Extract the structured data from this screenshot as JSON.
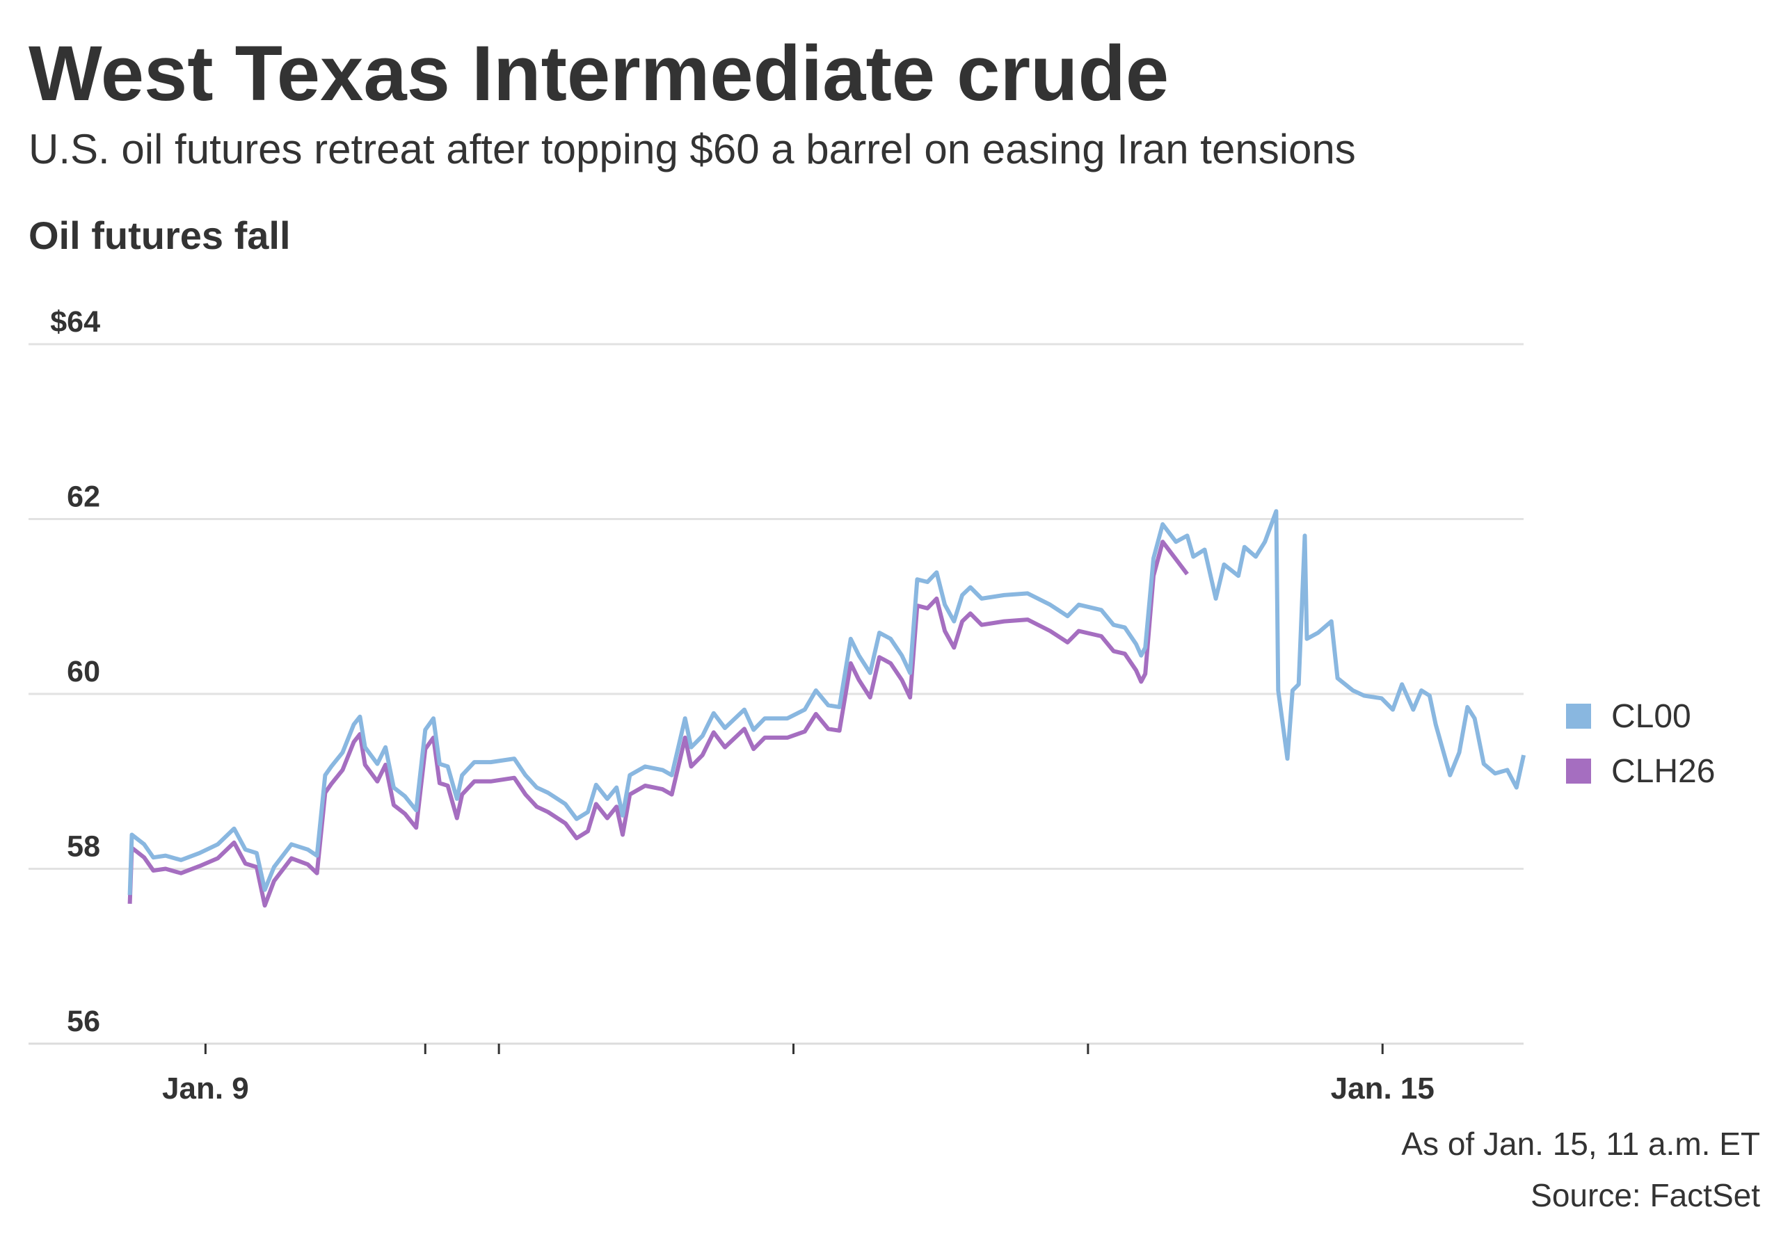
{
  "title": "West Texas Intermediate crude",
  "subtitle": "U.S. oil futures retreat after topping $60 a barrel on easing Iran tensions",
  "chart_data": {
    "type": "line",
    "title": "Oil futures fall",
    "xlabel": "",
    "ylabel": "",
    "ylim": [
      56,
      64
    ],
    "yticks": [
      "$64",
      "62",
      "60",
      "58",
      "56"
    ],
    "ytick_values": [
      64,
      62,
      60,
      58,
      56
    ],
    "xtick_labels": [
      {
        "label": "Jan. 9",
        "at": "Jan 9 00:00"
      },
      {
        "label": "",
        "at": "Jan 11 18:00"
      },
      {
        "label": "",
        "at": "Jan 12 00:00"
      },
      {
        "label": "",
        "at": "Jan 13 00:00"
      },
      {
        "label": "",
        "at": "Jan 14 00:00"
      },
      {
        "label": "Jan. 15",
        "at": "Jan 15 00:00"
      }
    ],
    "grid": true,
    "legend": "right",
    "series": [
      {
        "name": "CL00",
        "color": "#89b7e0",
        "points": [
          [
            "Jan 8 17:50",
            57.7
          ],
          [
            "Jan 8 18:00",
            58.39
          ],
          [
            "Jan 8 19:00",
            58.28
          ],
          [
            "Jan 8 19:45",
            58.13
          ],
          [
            "Jan 8 20:45",
            58.15
          ],
          [
            "Jan 8 22:00",
            58.1
          ],
          [
            "Jan 8 23:30",
            58.18
          ],
          [
            "Jan 9 01:00",
            58.28
          ],
          [
            "Jan 9 02:20",
            58.46
          ],
          [
            "Jan 9 03:15",
            58.22
          ],
          [
            "Jan 9 04:10",
            58.18
          ],
          [
            "Jan 9 04:50",
            57.76
          ],
          [
            "Jan 9 05:35",
            58.02
          ],
          [
            "Jan 9 07:00",
            58.28
          ],
          [
            "Jan 9 08:20",
            58.22
          ],
          [
            "Jan 9 09:05",
            58.15
          ],
          [
            "Jan 9 09:45",
            59.07
          ],
          [
            "Jan 9 10:15",
            59.17
          ],
          [
            "Jan 9 11:10",
            59.33
          ],
          [
            "Jan 9 12:05",
            59.65
          ],
          [
            "Jan 9 12:35",
            59.74
          ],
          [
            "Jan 9 13:00",
            59.39
          ],
          [
            "Jan 9 14:00",
            59.2
          ],
          [
            "Jan 9 14:40",
            59.39
          ],
          [
            "Jan 9 15:20",
            58.93
          ],
          [
            "Jan 9 16:15",
            58.83
          ],
          [
            "Jan 9 17:10",
            58.67
          ],
          [
            "Jan 11 18:00",
            59.59
          ],
          [
            "Jan 11 18:40",
            59.72
          ],
          [
            "Jan 11 19:10",
            59.2
          ],
          [
            "Jan 11 19:50",
            59.17
          ],
          [
            "Jan 11 20:35",
            58.8
          ],
          [
            "Jan 11 21:00",
            59.07
          ],
          [
            "Jan 11 22:00",
            59.22
          ],
          [
            "Jan 11 23:20",
            59.22
          ],
          [
            "Jan 12 01:15",
            59.26
          ],
          [
            "Jan 12 02:10",
            59.07
          ],
          [
            "Jan 12 03:05",
            58.93
          ],
          [
            "Jan 12 04:00",
            58.87
          ],
          [
            "Jan 12 05:25",
            58.74
          ],
          [
            "Jan 12 06:20",
            58.57
          ],
          [
            "Jan 12 07:15",
            58.65
          ],
          [
            "Jan 12 07:55",
            58.96
          ],
          [
            "Jan 12 08:50",
            58.8
          ],
          [
            "Jan 12 09:35",
            58.93
          ],
          [
            "Jan 12 10:05",
            58.61
          ],
          [
            "Jan 12 10:40",
            59.07
          ],
          [
            "Jan 12 11:55",
            59.17
          ],
          [
            "Jan 12 13:20",
            59.13
          ],
          [
            "Jan 12 14:05",
            59.07
          ],
          [
            "Jan 12 15:10",
            59.72
          ],
          [
            "Jan 12 15:40",
            59.39
          ],
          [
            "Jan 12 16:35",
            59.52
          ],
          [
            "Jan 12 17:30",
            59.78
          ],
          [
            "Jan 12 18:25",
            59.61
          ],
          [
            "Jan 12 20:00",
            59.82
          ],
          [
            "Jan 12 20:45",
            59.59
          ],
          [
            "Jan 12 21:40",
            59.72
          ],
          [
            "Jan 12 23:30",
            59.72
          ],
          [
            "Jan 13 00:55",
            59.82
          ],
          [
            "Jan 13 01:50",
            60.04
          ],
          [
            "Jan 13 02:50",
            59.87
          ],
          [
            "Jan 13 03:45",
            59.85
          ],
          [
            "Jan 13 04:40",
            60.63
          ],
          [
            "Jan 13 05:20",
            60.44
          ],
          [
            "Jan 13 06:15",
            60.24
          ],
          [
            "Jan 13 07:00",
            60.7
          ],
          [
            "Jan 13 07:55",
            60.63
          ],
          [
            "Jan 13 08:50",
            60.44
          ],
          [
            "Jan 13 09:30",
            60.24
          ],
          [
            "Jan 13 10:05",
            61.31
          ],
          [
            "Jan 13 10:55",
            61.28
          ],
          [
            "Jan 13 11:40",
            61.39
          ],
          [
            "Jan 13 12:20",
            61.02
          ],
          [
            "Jan 13 13:05",
            60.83
          ],
          [
            "Jan 13 13:45",
            61.13
          ],
          [
            "Jan 13 14:25",
            61.22
          ],
          [
            "Jan 13 15:20",
            61.09
          ],
          [
            "Jan 13 17:10",
            61.13
          ],
          [
            "Jan 13 19:05",
            61.15
          ],
          [
            "Jan 13 20:55",
            61.02
          ],
          [
            "Jan 13 22:20",
            60.89
          ],
          [
            "Jan 13 23:15",
            61.02
          ],
          [
            "Jan 14 01:05",
            60.96
          ],
          [
            "Jan 14 02:05",
            60.79
          ],
          [
            "Jan 14 03:00",
            60.76
          ],
          [
            "Jan 14 03:55",
            60.57
          ],
          [
            "Jan 14 04:20",
            60.44
          ],
          [
            "Jan 14 04:40",
            60.53
          ],
          [
            "Jan 14 05:20",
            61.55
          ],
          [
            "Jan 14 06:05",
            61.94
          ],
          [
            "Jan 14 07:10",
            61.74
          ],
          [
            "Jan 14 08:05",
            61.81
          ],
          [
            "Jan 14 08:35",
            61.57
          ],
          [
            "Jan 14 09:30",
            61.65
          ],
          [
            "Jan 14 10:25",
            61.09
          ],
          [
            "Jan 14 11:05",
            61.48
          ],
          [
            "Jan 14 12:15",
            61.35
          ],
          [
            "Jan 14 12:45",
            61.68
          ],
          [
            "Jan 14 13:40",
            61.57
          ],
          [
            "Jan 14 14:25",
            61.74
          ],
          [
            "Jan 14 15:20",
            62.09
          ],
          [
            "Jan 14 15:30",
            60.04
          ],
          [
            "Jan 14 16:15",
            59.26
          ],
          [
            "Jan 14 16:40",
            60.04
          ],
          [
            "Jan 14 17:10",
            60.11
          ],
          [
            "Jan 14 17:40",
            61.81
          ],
          [
            "Jan 14 17:50",
            60.63
          ],
          [
            "Jan 14 18:45",
            60.7
          ],
          [
            "Jan 14 19:50",
            60.83
          ],
          [
            "Jan 14 20:20",
            60.18
          ],
          [
            "Jan 14 21:35",
            60.04
          ],
          [
            "Jan 14 22:30",
            59.98
          ],
          [
            "Jan 14 23:55",
            59.95
          ],
          [
            "Jan 15 00:50",
            59.82
          ],
          [
            "Jan 15 01:35",
            60.11
          ],
          [
            "Jan 15 02:30",
            59.82
          ],
          [
            "Jan 15 03:10",
            60.04
          ],
          [
            "Jan 15 03:50",
            59.98
          ],
          [
            "Jan 15 04:20",
            59.65
          ],
          [
            "Jan 15 05:30",
            59.07
          ],
          [
            "Jan 15 06:15",
            59.33
          ],
          [
            "Jan 15 06:55",
            59.85
          ],
          [
            "Jan 15 07:30",
            59.72
          ],
          [
            "Jan 15 08:15",
            59.2
          ],
          [
            "Jan 15 09:10",
            59.09
          ],
          [
            "Jan 15 10:10",
            59.13
          ],
          [
            "Jan 15 10:55",
            58.93
          ],
          [
            "Jan 15 11:30",
            59.3
          ]
        ]
      },
      {
        "name": "CLH26",
        "color": "#a56ec0",
        "points": [
          [
            "Jan 8 17:50",
            57.6
          ],
          [
            "Jan 8 18:00",
            58.24
          ],
          [
            "Jan 8 19:00",
            58.13
          ],
          [
            "Jan 8 19:45",
            57.98
          ],
          [
            "Jan 8 20:45",
            58.0
          ],
          [
            "Jan 8 22:00",
            57.95
          ],
          [
            "Jan 8 23:30",
            58.03
          ],
          [
            "Jan 9 01:00",
            58.12
          ],
          [
            "Jan 9 02:20",
            58.3
          ],
          [
            "Jan 9 03:15",
            58.06
          ],
          [
            "Jan 9 04:10",
            58.02
          ],
          [
            "Jan 9 04:50",
            57.58
          ],
          [
            "Jan 9 05:35",
            57.86
          ],
          [
            "Jan 9 07:00",
            58.12
          ],
          [
            "Jan 9 08:20",
            58.05
          ],
          [
            "Jan 9 09:05",
            57.95
          ],
          [
            "Jan 9 09:45",
            58.87
          ],
          [
            "Jan 9 10:15",
            58.97
          ],
          [
            "Jan 9 11:10",
            59.13
          ],
          [
            "Jan 9 12:05",
            59.45
          ],
          [
            "Jan 9 12:35",
            59.54
          ],
          [
            "Jan 9 13:00",
            59.19
          ],
          [
            "Jan 9 14:00",
            59.0
          ],
          [
            "Jan 9 14:40",
            59.19
          ],
          [
            "Jan 9 15:20",
            58.73
          ],
          [
            "Jan 9 16:15",
            58.63
          ],
          [
            "Jan 9 17:10",
            58.47
          ],
          [
            "Jan 11 18:00",
            59.37
          ],
          [
            "Jan 11 18:40",
            59.5
          ],
          [
            "Jan 11 19:10",
            58.98
          ],
          [
            "Jan 11 19:50",
            58.95
          ],
          [
            "Jan 11 20:35",
            58.58
          ],
          [
            "Jan 11 21:00",
            58.85
          ],
          [
            "Jan 11 22:00",
            59.0
          ],
          [
            "Jan 11 23:20",
            59.0
          ],
          [
            "Jan 12 01:15",
            59.04
          ],
          [
            "Jan 12 02:10",
            58.85
          ],
          [
            "Jan 12 03:05",
            58.71
          ],
          [
            "Jan 12 04:00",
            58.65
          ],
          [
            "Jan 12 05:25",
            58.52
          ],
          [
            "Jan 12 06:20",
            58.35
          ],
          [
            "Jan 12 07:15",
            58.43
          ],
          [
            "Jan 12 07:55",
            58.74
          ],
          [
            "Jan 12 08:50",
            58.58
          ],
          [
            "Jan 12 09:35",
            58.71
          ],
          [
            "Jan 12 10:05",
            58.39
          ],
          [
            "Jan 12 10:40",
            58.85
          ],
          [
            "Jan 12 11:55",
            58.95
          ],
          [
            "Jan 12 13:20",
            58.91
          ],
          [
            "Jan 12 14:05",
            58.85
          ],
          [
            "Jan 12 15:10",
            59.5
          ],
          [
            "Jan 12 15:40",
            59.17
          ],
          [
            "Jan 12 16:35",
            59.3
          ],
          [
            "Jan 12 17:30",
            59.56
          ],
          [
            "Jan 12 18:25",
            59.39
          ],
          [
            "Jan 12 20:00",
            59.6
          ],
          [
            "Jan 12 20:45",
            59.37
          ],
          [
            "Jan 12 21:40",
            59.5
          ],
          [
            "Jan 12 23:30",
            59.5
          ],
          [
            "Jan 13 00:55",
            59.57
          ],
          [
            "Jan 13 01:50",
            59.77
          ],
          [
            "Jan 13 02:50",
            59.6
          ],
          [
            "Jan 13 03:45",
            59.58
          ],
          [
            "Jan 13 04:40",
            60.35
          ],
          [
            "Jan 13 05:20",
            60.16
          ],
          [
            "Jan 13 06:15",
            59.96
          ],
          [
            "Jan 13 07:00",
            60.42
          ],
          [
            "Jan 13 07:55",
            60.35
          ],
          [
            "Jan 13 08:50",
            60.16
          ],
          [
            "Jan 13 09:30",
            59.96
          ],
          [
            "Jan 13 10:05",
            61.01
          ],
          [
            "Jan 13 10:55",
            60.98
          ],
          [
            "Jan 13 11:40",
            61.09
          ],
          [
            "Jan 13 12:20",
            60.72
          ],
          [
            "Jan 13 13:05",
            60.53
          ],
          [
            "Jan 13 13:45",
            60.83
          ],
          [
            "Jan 13 14:25",
            60.92
          ],
          [
            "Jan 13 15:20",
            60.79
          ],
          [
            "Jan 13 17:10",
            60.83
          ],
          [
            "Jan 13 19:05",
            60.85
          ],
          [
            "Jan 13 20:55",
            60.72
          ],
          [
            "Jan 13 22:20",
            60.59
          ],
          [
            "Jan 13 23:15",
            60.72
          ],
          [
            "Jan 14 01:05",
            60.66
          ],
          [
            "Jan 14 02:05",
            60.49
          ],
          [
            "Jan 14 03:00",
            60.46
          ],
          [
            "Jan 14 03:55",
            60.27
          ],
          [
            "Jan 14 04:20",
            60.14
          ],
          [
            "Jan 14 04:40",
            60.23
          ],
          [
            "Jan 14 05:20",
            61.35
          ],
          [
            "Jan 14 06:05",
            61.74
          ],
          [
            "Jan 14 07:10",
            61.54
          ],
          [
            "Jan 14 08:05",
            61.37
          ]
        ]
      }
    ]
  },
  "footer": {
    "as_of": "As of Jan. 15, 11 a.m. ET",
    "source": "Source: FactSet"
  }
}
